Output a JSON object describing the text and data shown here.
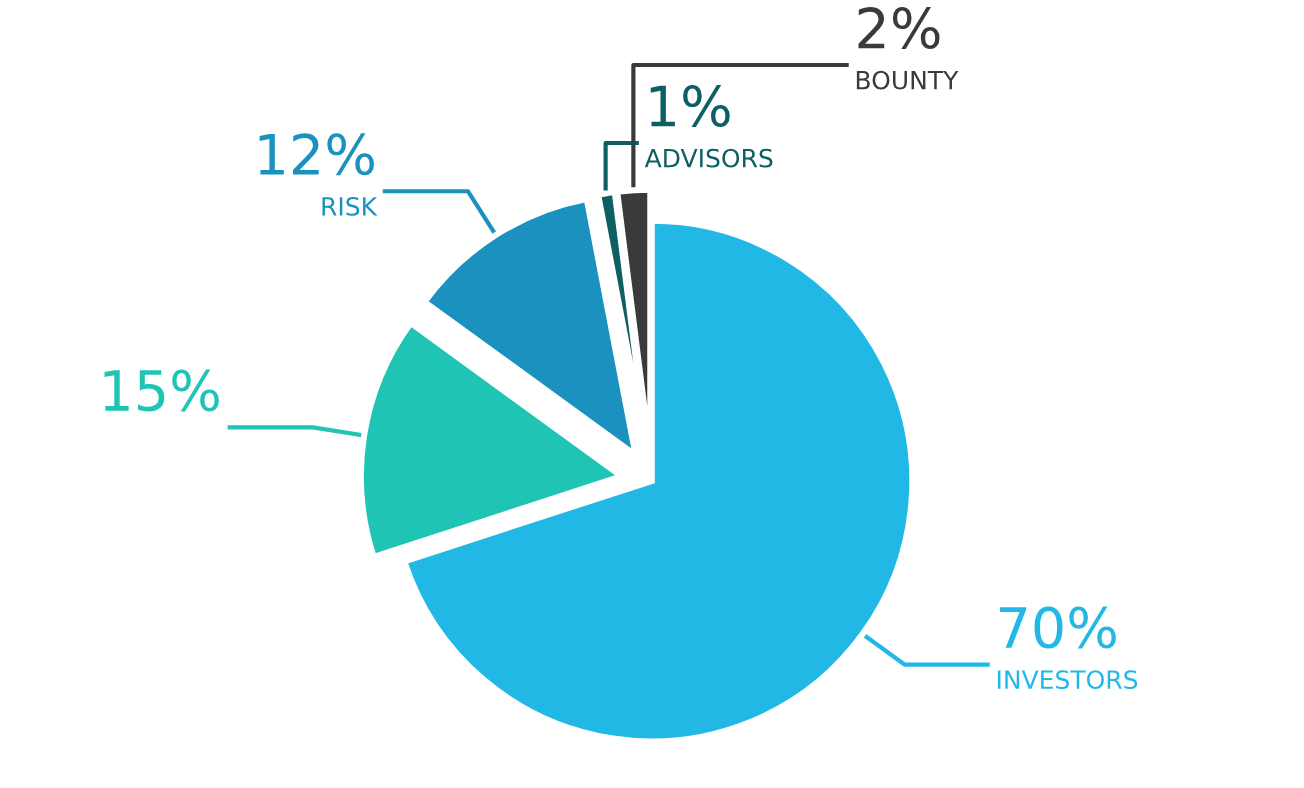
{
  "chart_data": {
    "type": "pie",
    "categories": [
      "INVESTORS",
      null,
      "RISK",
      "ADVISORS",
      "BOUNTY"
    ],
    "values": [
      70,
      15,
      12,
      1,
      2
    ],
    "value_labels": [
      "70%",
      "15%",
      "12%",
      "1%",
      "2%"
    ],
    "colors": [
      "#21b8e6",
      "#1fc4b5",
      "#1b91bf",
      "#0e5f63",
      "#3a3a3a"
    ]
  }
}
